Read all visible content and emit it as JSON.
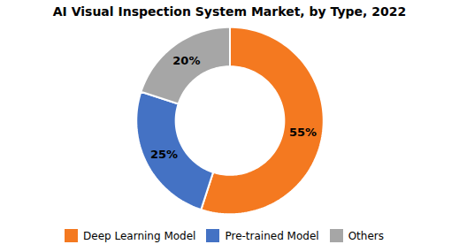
{
  "chart_data": {
    "type": "pie",
    "title": "AI Visual Inspection System Market, by Type, 2022",
    "categories": [
      "Deep Learning Model",
      "Pre-trained Model",
      "Others"
    ],
    "values": [
      55,
      25,
      20
    ],
    "value_labels": [
      "55%",
      "25%",
      "20%"
    ],
    "colors": [
      "#F47920",
      "#4472C4",
      "#A6A6A6"
    ],
    "data_labels": true,
    "legend": "bottom"
  }
}
